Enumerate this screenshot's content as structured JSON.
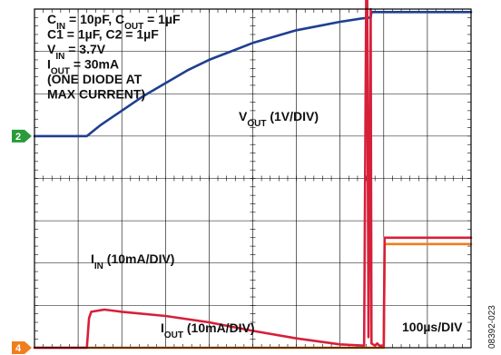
{
  "chart_data": {
    "type": "line",
    "divisions": {
      "x": 10,
      "y": 8
    },
    "conditions": [
      {
        "parts": [
          {
            "t": "C"
          },
          {
            "t": "IN",
            "sub": true
          },
          {
            "t": " = 10pF, C"
          },
          {
            "t": "OUT",
            "sub": true
          },
          {
            "t": " = 1µF"
          }
        ]
      },
      {
        "parts": [
          {
            "t": "C1 = 1µF, C2 = 1µF"
          }
        ]
      },
      {
        "parts": [
          {
            "t": "V"
          },
          {
            "t": "IN",
            "sub": true
          },
          {
            "t": " = 3.7V"
          }
        ]
      },
      {
        "parts": [
          {
            "t": "I"
          },
          {
            "t": "OUT",
            "sub": true
          },
          {
            "t": " = 30mA"
          }
        ]
      },
      {
        "parts": [
          {
            "t": "(ONE DIODE AT"
          }
        ]
      },
      {
        "parts": [
          {
            "t": "MAX CURRENT)"
          }
        ]
      }
    ],
    "timebase_label": "100µs/DIV",
    "figure_id": "08392-023",
    "channel_markers": [
      {
        "label": "2",
        "color": "#2a9a3a",
        "level_div": 5.0
      },
      {
        "label": "4",
        "color": "#f07e1e",
        "level_div": 0.0
      }
    ],
    "series": [
      {
        "label_parts": [
          {
            "t": "V"
          },
          {
            "t": "OUT",
            "sub": true
          },
          {
            "t": " (1V/DIV)"
          }
        ],
        "color": "#1f3f8f",
        "x_div": [
          0.0,
          1.2,
          1.5,
          2.0,
          2.5,
          3.0,
          3.5,
          4.0,
          4.5,
          5.0,
          5.5,
          6.0,
          6.5,
          7.0,
          7.5,
          7.7,
          7.72,
          8.0,
          8.5,
          9.0,
          9.5,
          10.0
        ],
        "y_div": [
          5.0,
          5.0,
          5.25,
          5.6,
          5.95,
          6.25,
          6.55,
          6.8,
          7.0,
          7.2,
          7.35,
          7.5,
          7.6,
          7.7,
          7.78,
          7.8,
          7.93,
          7.93,
          7.93,
          7.93,
          7.93,
          7.93
        ]
      },
      {
        "label_parts": [
          {
            "t": "I"
          },
          {
            "t": "IN",
            "sub": true
          },
          {
            "t": " (10mA/DIV)"
          }
        ],
        "color": "#d6203a",
        "x_div": [
          0.0,
          1.2,
          1.25,
          1.3,
          1.6,
          2.0,
          3.0,
          4.0,
          5.0,
          6.0,
          7.0,
          7.55,
          7.6,
          7.62,
          7.65,
          7.7,
          7.72,
          7.8,
          7.85,
          7.9,
          8.0,
          8.02,
          10.0
        ],
        "y_div": [
          0.0,
          0.0,
          0.7,
          0.85,
          0.9,
          0.85,
          0.75,
          0.6,
          0.4,
          0.22,
          0.08,
          0.05,
          8.8,
          8.9,
          0.25,
          8.0,
          0.1,
          0.05,
          0.1,
          0.05,
          0.05,
          2.6,
          2.6
        ]
      },
      {
        "label_parts": [
          {
            "t": "I"
          },
          {
            "t": "OUT",
            "sub": true
          },
          {
            "t": " (10mA/DIV)"
          }
        ],
        "color": "#f07e1e",
        "x_div": [
          0.0,
          7.98,
          8.0,
          8.02,
          10.0
        ],
        "y_div": [
          0.0,
          0.0,
          0.0,
          2.45,
          2.45
        ]
      }
    ]
  }
}
